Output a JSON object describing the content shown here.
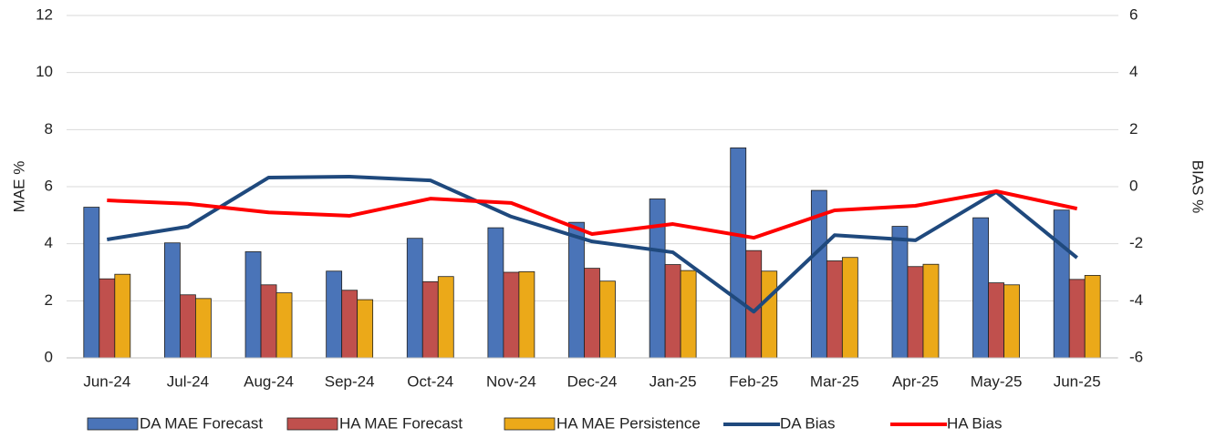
{
  "chart_data": {
    "type": "combo",
    "categories": [
      "Jun-24",
      "Jul-24",
      "Aug-24",
      "Sep-24",
      "Oct-24",
      "Nov-24",
      "Dec-24",
      "Jan-25",
      "Feb-25",
      "Mar-25",
      "Apr-25",
      "May-25",
      "Jun-25"
    ],
    "y_label": "MAE %",
    "y2_label": "BIAS %",
    "ylim": [
      0,
      12
    ],
    "yticks": [
      0,
      2,
      4,
      6,
      8,
      10,
      12
    ],
    "y2lim": [
      -6,
      6
    ],
    "y2ticks": [
      -6,
      -4,
      -2,
      0,
      2,
      4,
      6
    ],
    "grid": true,
    "legend": "bottom",
    "series": [
      {
        "name": "DA MAE Forecast",
        "type": "bar",
        "color": "#4a74b8",
        "values": [
          5.28,
          4.03,
          3.72,
          3.04,
          4.19,
          4.56,
          4.75,
          5.57,
          7.36,
          5.87,
          4.61,
          4.91,
          5.18
        ]
      },
      {
        "name": "HA MAE Forecast",
        "type": "bar",
        "color": "#c0504d",
        "values": [
          2.77,
          2.21,
          2.56,
          2.37,
          2.67,
          3.0,
          3.14,
          3.27,
          3.76,
          3.4,
          3.2,
          2.63,
          2.75
        ]
      },
      {
        "name": "HA MAE Persistence",
        "type": "bar",
        "color": "#eba919",
        "values": [
          2.93,
          2.08,
          2.28,
          2.04,
          2.85,
          3.02,
          2.69,
          3.06,
          3.04,
          3.52,
          3.28,
          2.56,
          2.89
        ]
      },
      {
        "name": "DA Bias",
        "type": "line",
        "axis": "y2",
        "color": "#1f497d",
        "values": [
          -1.85,
          -1.4,
          0.32,
          0.35,
          0.22,
          -1.05,
          -1.92,
          -2.3,
          -4.38,
          -1.7,
          -1.88,
          -0.19,
          -2.49
        ]
      },
      {
        "name": "HA Bias",
        "type": "line",
        "axis": "y2",
        "color": "#ff0000",
        "values": [
          -0.48,
          -0.6,
          -0.9,
          -1.02,
          -0.42,
          -0.57,
          -1.66,
          -1.31,
          -1.79,
          -0.83,
          -0.67,
          -0.16,
          -0.77
        ]
      }
    ]
  }
}
